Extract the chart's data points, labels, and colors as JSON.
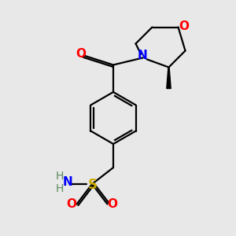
{
  "bg_color": "#e8e8e8",
  "bond_color": "#000000",
  "atom_colors": {
    "O": "#ff0000",
    "N": "#0000ff",
    "S": "#ccaa00",
    "C": "#000000",
    "H": "#5a8a5a"
  },
  "figsize": [
    3.0,
    3.0
  ],
  "dpi": 100,
  "lw": 1.6,
  "fs": 10
}
